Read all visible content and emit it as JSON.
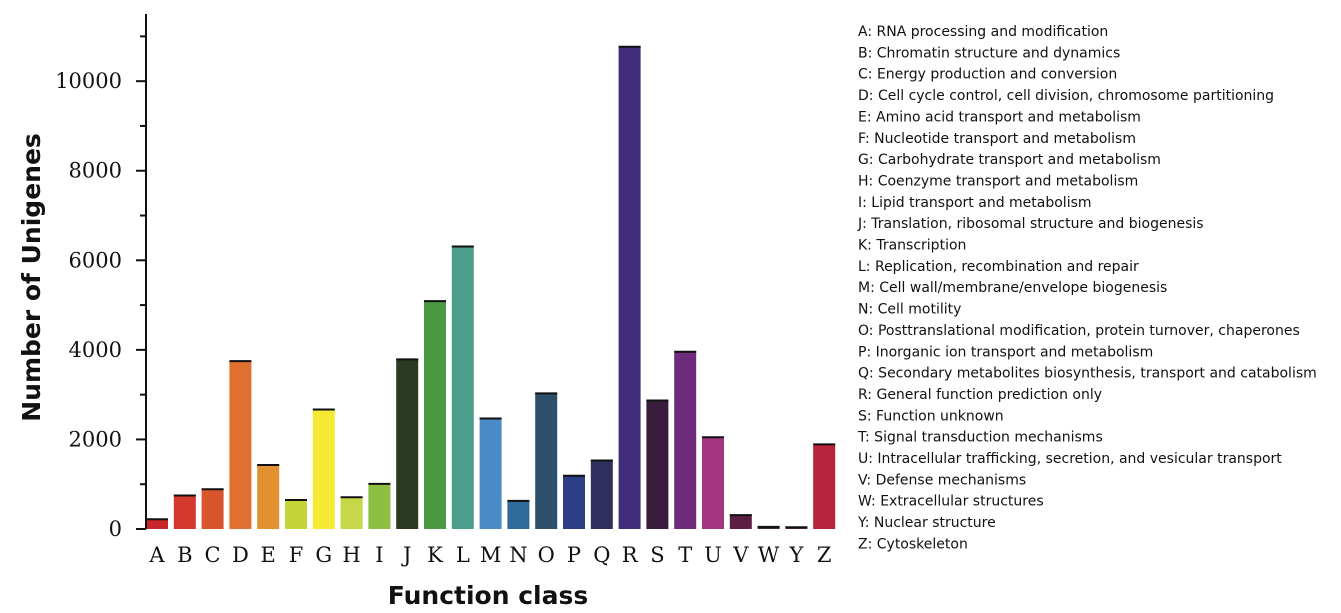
{
  "chart_data": {
    "type": "bar",
    "title": "",
    "xlabel": "Function class",
    "ylabel": "Number of Unigenes",
    "ylim": [
      0,
      11500
    ],
    "yticks": [
      0,
      2000,
      4000,
      6000,
      8000,
      10000
    ],
    "grid": false,
    "legend_position": "right",
    "categories": [
      "A",
      "B",
      "C",
      "D",
      "E",
      "F",
      "G",
      "H",
      "I",
      "J",
      "K",
      "L",
      "M",
      "N",
      "O",
      "P",
      "Q",
      "R",
      "S",
      "T",
      "U",
      "V",
      "W",
      "Y",
      "Z"
    ],
    "values": [
      230,
      760,
      900,
      3760,
      1440,
      660,
      2680,
      720,
      1020,
      3800,
      5100,
      6320,
      2480,
      640,
      3040,
      1200,
      1540,
      10780,
      2880,
      3970,
      2060,
      320,
      60,
      50,
      1900
    ],
    "colors": [
      "#c8262b",
      "#d5392e",
      "#d9552b",
      "#df7030",
      "#e39030",
      "#c4d53a",
      "#f5e933",
      "#c6d847",
      "#8cbf43",
      "#2d3a22",
      "#4a9a43",
      "#4c9e8b",
      "#4a8cc8",
      "#2e6a9a",
      "#2c4f6c",
      "#2c3f86",
      "#2f3060",
      "#3f2d7a",
      "#3a1d3c",
      "#6e2b7c",
      "#a2367f",
      "#5d1e44",
      "#3e2a3a",
      "#4a2a3a",
      "#b8253a"
    ],
    "legend_entries": [
      "A: RNA processing and modification",
      "B: Chromatin structure and dynamics",
      "C: Energy production and conversion",
      "D: Cell cycle control, cell division, chromosome partitioning",
      "E: Amino acid transport and metabolism",
      "F: Nucleotide transport and metabolism",
      "G: Carbohydrate transport and metabolism",
      "H: Coenzyme transport and metabolism",
      "I: Lipid transport and metabolism",
      "J: Translation, ribosomal structure and biogenesis",
      "K: Transcription",
      "L: Replication, recombination and repair",
      "M: Cell wall/membrane/envelope biogenesis",
      "N: Cell motility",
      "O: Posttranslational modification, protein turnover, chaperones",
      "P: Inorganic ion transport and metabolism",
      "Q: Secondary metabolites biosynthesis, transport and catabolism",
      "R: General function prediction only",
      "S: Function unknown",
      "T: Signal transduction mechanisms",
      "U: Intracellular trafficking, secretion, and vesicular transport",
      "V: Defense mechanisms",
      "W: Extracellular structures",
      "Y: Nuclear structure",
      "Z: Cytoskeleton"
    ]
  }
}
